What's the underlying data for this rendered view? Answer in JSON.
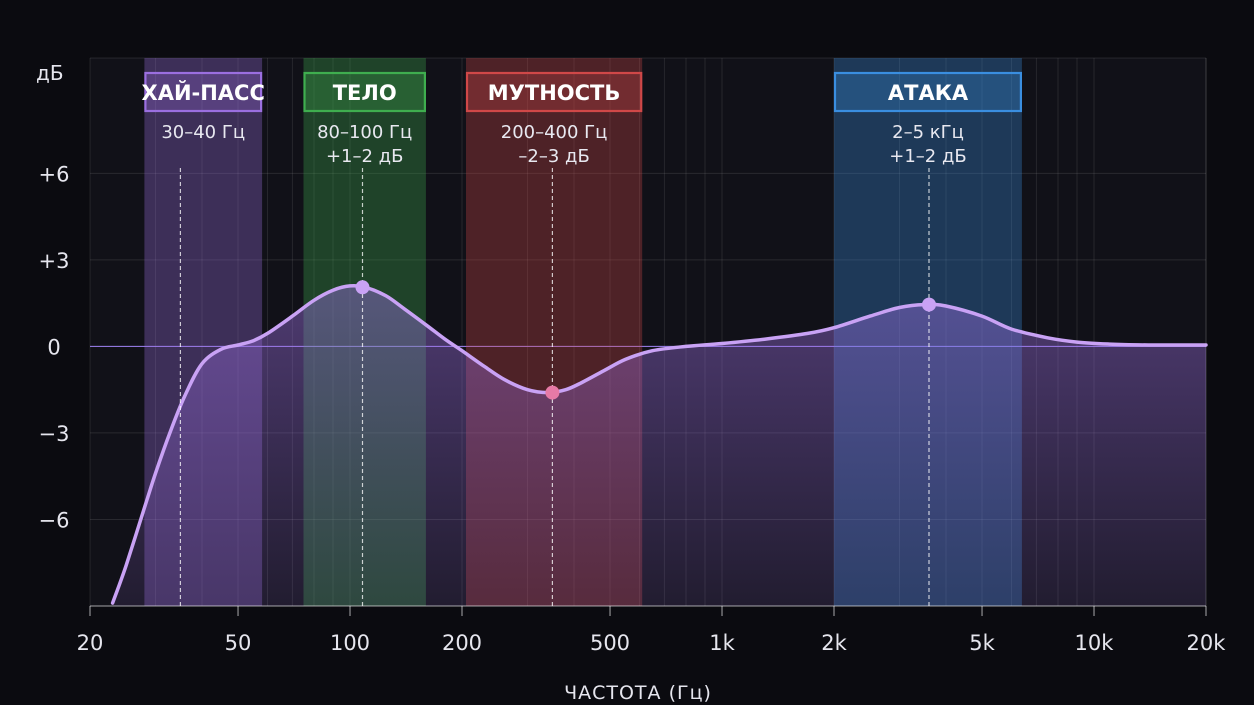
{
  "chart_data": {
    "type": "line",
    "ylabel": "дБ",
    "xlabel": "ЧАСТОТА (Гц)",
    "x_scale": "log",
    "xlim": [
      20,
      20000
    ],
    "ylim": [
      -9,
      10
    ],
    "x_ticks": [
      {
        "value": 20,
        "label": "20"
      },
      {
        "value": 50,
        "label": "50"
      },
      {
        "value": 100,
        "label": "100"
      },
      {
        "value": 200,
        "label": "200"
      },
      {
        "value": 500,
        "label": "500"
      },
      {
        "value": 1000,
        "label": "1k"
      },
      {
        "value": 2000,
        "label": "2k"
      },
      {
        "value": 5000,
        "label": "5k"
      },
      {
        "value": 10000,
        "label": "10k"
      },
      {
        "value": 20000,
        "label": "20k"
      }
    ],
    "y_ticks": [
      {
        "value": 6,
        "label": "+6"
      },
      {
        "value": 3,
        "label": "+3"
      },
      {
        "value": 0,
        "label": "0"
      },
      {
        "value": -3,
        "label": "−3"
      },
      {
        "value": -6,
        "label": "−6"
      }
    ],
    "grid": true,
    "curve_color": "#c9a2f5",
    "series": [
      {
        "x": [
          23,
          25,
          28,
          30,
          33,
          36,
          40,
          45,
          50,
          55,
          60,
          70,
          80,
          90,
          100,
          110,
          125,
          140,
          160,
          180,
          200,
          230,
          260,
          300,
          340,
          380,
          420,
          480,
          550,
          650,
          800,
          1000,
          1300,
          1700,
          2000,
          2500,
          3000,
          3500,
          4000,
          5000,
          6000,
          7500,
          9000,
          11000,
          14000,
          20000
        ],
        "y": [
          -8.9,
          -7.6,
          -5.6,
          -4.4,
          -2.9,
          -1.7,
          -0.6,
          -0.1,
          0.05,
          0.2,
          0.45,
          1.05,
          1.6,
          1.95,
          2.1,
          2.05,
          1.75,
          1.3,
          0.75,
          0.25,
          -0.15,
          -0.7,
          -1.15,
          -1.5,
          -1.6,
          -1.5,
          -1.25,
          -0.85,
          -0.45,
          -0.15,
          0.0,
          0.1,
          0.25,
          0.45,
          0.65,
          1.05,
          1.35,
          1.45,
          1.4,
          1.05,
          0.6,
          0.3,
          0.15,
          0.08,
          0.05,
          0.05
        ]
      }
    ],
    "markers": [
      {
        "x": 108,
        "y": 2.05,
        "color": "#c9a2f5"
      },
      {
        "x": 350,
        "y": -1.6,
        "color": "#e67aa6"
      },
      {
        "x": 3600,
        "y": 1.45,
        "color": "#c9a2f5"
      }
    ],
    "bands": [
      {
        "title": "ХАЙ-ПАСС",
        "lines": [
          "30–40 Гц"
        ],
        "from": 28,
        "to": 58,
        "center": 35,
        "color": "#9b6fe0"
      },
      {
        "title": "ТЕЛО",
        "lines": [
          "80–100 Гц",
          "+1–2 дБ"
        ],
        "from": 75,
        "to": 160,
        "center": 108,
        "color": "#3fae4f"
      },
      {
        "title": "МУТНОСТЬ",
        "lines": [
          "200–400 Гц",
          "–2–3 дБ"
        ],
        "from": 205,
        "to": 610,
        "center": 350,
        "color": "#d04848"
      },
      {
        "title": "АТАКА",
        "lines": [
          "2–5 кГц",
          "+1–2 дБ"
        ],
        "from": 2000,
        "to": 6400,
        "center": 3600,
        "color": "#3a8ee0"
      }
    ]
  }
}
